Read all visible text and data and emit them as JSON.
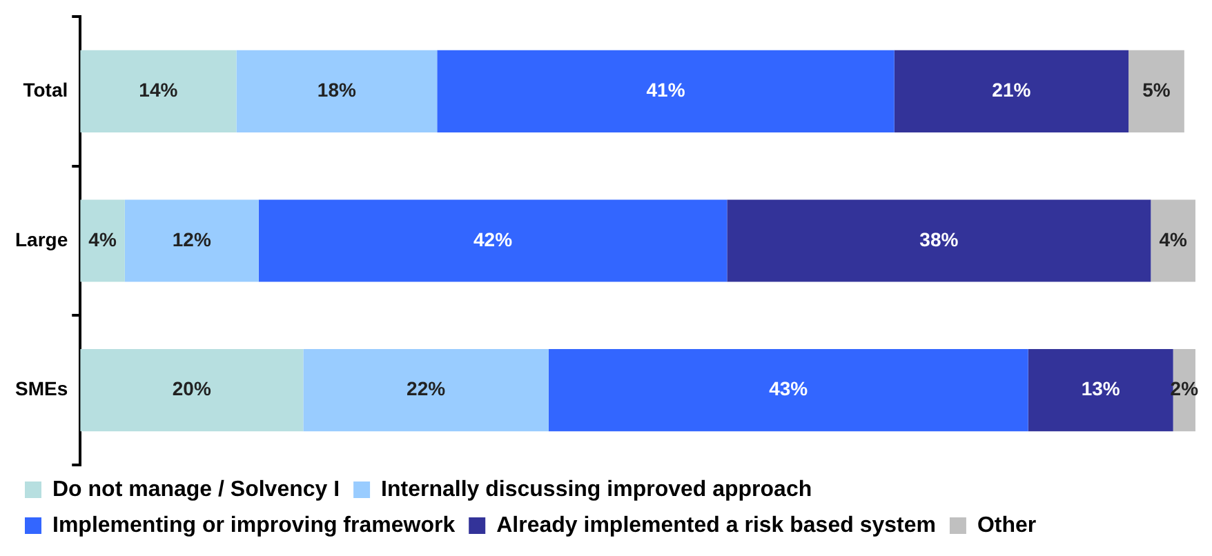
{
  "chart_data": {
    "type": "bar",
    "orientation": "horizontal",
    "stacked": true,
    "categories": [
      "Total",
      "Large",
      "SMEs"
    ],
    "series": [
      {
        "name": "Do not manage / Solvency I",
        "color": "#b7dfe0",
        "values": [
          14,
          4,
          20
        ],
        "value_labels": [
          "14%",
          "4%",
          "20%"
        ]
      },
      {
        "name": "Internally discussing improved approach",
        "color": "#99ccff",
        "values": [
          18,
          12,
          22
        ],
        "value_labels": [
          "18%",
          "12%",
          "22%"
        ]
      },
      {
        "name": "Implementing or improving framework",
        "color": "#3366ff",
        "values": [
          41,
          42,
          43
        ],
        "value_labels": [
          "41%",
          "42%",
          "43%"
        ]
      },
      {
        "name": "Already implemented a risk based system",
        "color": "#333399",
        "values": [
          21,
          38,
          13
        ],
        "value_labels": [
          "21%",
          "38%",
          "13%"
        ]
      },
      {
        "name": "Other",
        "color": "#c0c0c0",
        "values": [
          5,
          4,
          2
        ],
        "value_labels": [
          "5%",
          "4%",
          "2%"
        ]
      }
    ],
    "legend": "bottom"
  }
}
